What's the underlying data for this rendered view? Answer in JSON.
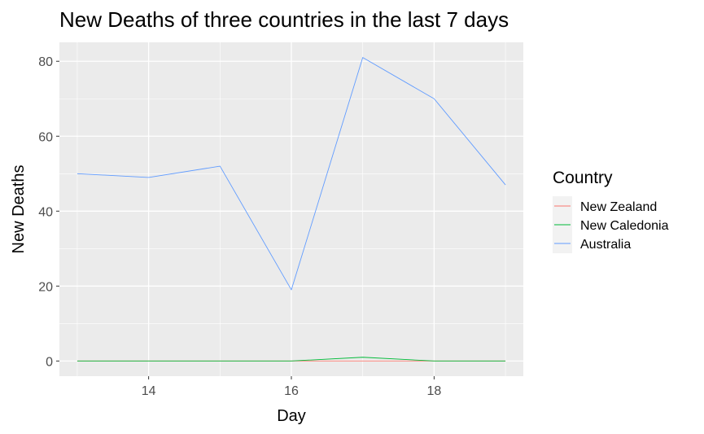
{
  "chart_data": {
    "type": "line",
    "title": "New Deaths of three countries in the last 7 days",
    "xlabel": "Day",
    "ylabel": "New Deaths",
    "x": [
      13,
      14,
      15,
      16,
      17,
      18,
      19
    ],
    "xlim": [
      12.75,
      19.25
    ],
    "ylim": [
      -4.05,
      85.05
    ],
    "x_ticks": [
      14,
      16,
      18
    ],
    "y_ticks": [
      0,
      20,
      40,
      60,
      80
    ],
    "grid": true,
    "panel_background": "#ebebeb",
    "legend": {
      "title": "Country",
      "position": "right"
    },
    "series": [
      {
        "name": "New Zealand",
        "color": "#f8766d",
        "values": [
          0,
          0,
          0,
          0,
          0,
          0,
          0
        ]
      },
      {
        "name": "New Caledonia",
        "color": "#00ba38",
        "values": [
          0,
          0,
          0,
          0,
          1,
          0,
          0
        ]
      },
      {
        "name": "Australia",
        "color": "#619cff",
        "values": [
          50,
          49,
          52,
          19,
          81,
          70,
          47
        ]
      }
    ]
  }
}
